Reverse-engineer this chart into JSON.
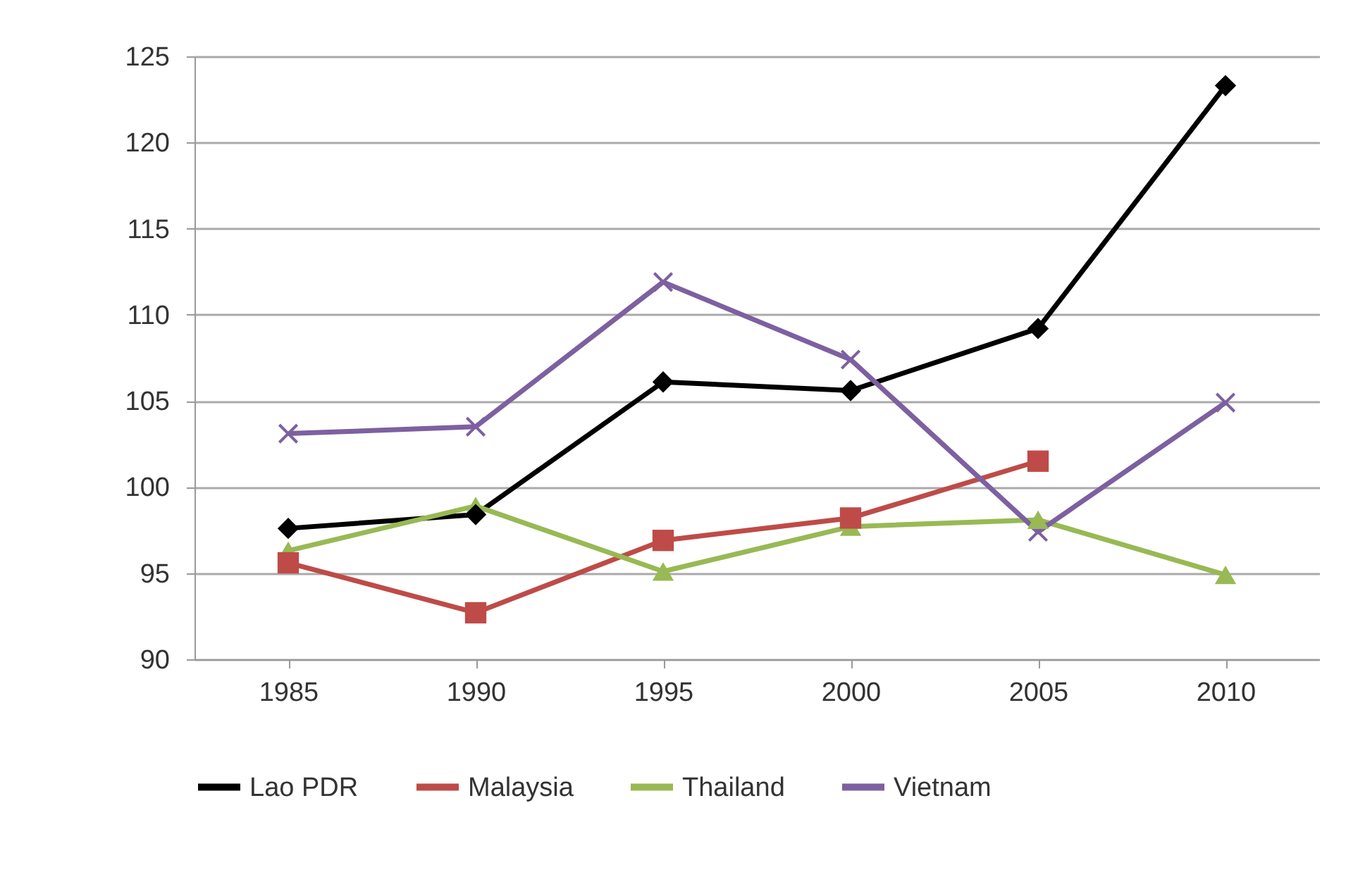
{
  "chart_data": {
    "type": "line",
    "categories": [
      "1985",
      "1990",
      "1995",
      "2000",
      "2005",
      "2010"
    ],
    "series": [
      {
        "name": "Lao PDR",
        "color": "#000000",
        "marker": "diamond",
        "values": [
          97.6,
          98.4,
          106.1,
          105.6,
          109.2,
          123.3
        ]
      },
      {
        "name": "Malaysia",
        "color": "#be4b48",
        "marker": "square",
        "values": [
          95.6,
          92.7,
          96.9,
          98.2,
          101.5,
          null
        ]
      },
      {
        "name": "Thailand",
        "color": "#98b954",
        "marker": "triangle",
        "values": [
          96.3,
          98.9,
          95.1,
          97.7,
          98.1,
          94.9
        ]
      },
      {
        "name": "Vietnam",
        "color": "#7d60a0",
        "marker": "cross",
        "values": [
          103.1,
          103.5,
          111.9,
          107.4,
          97.4,
          104.9
        ]
      }
    ],
    "ylim": [
      90,
      125
    ],
    "yticks": [
      90,
      95,
      100,
      105,
      110,
      115,
      120,
      125
    ],
    "grid": "y",
    "legend": "bottom"
  }
}
